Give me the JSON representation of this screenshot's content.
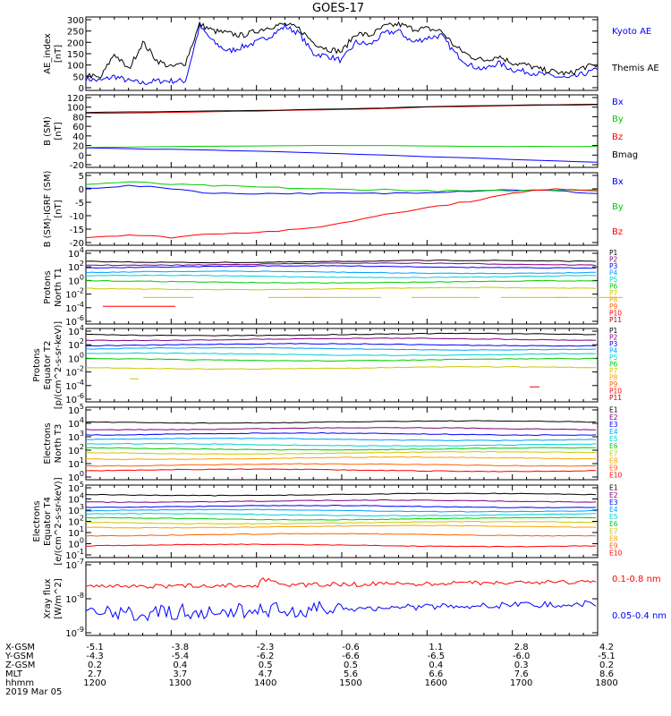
{
  "title": "GOES-17",
  "chart_data": [
    {
      "type": "line",
      "ylabel": "AE_index [nT]",
      "yticks": [
        "300",
        "250",
        "200",
        "150",
        "100",
        "50",
        "0"
      ],
      "ylim": [
        0,
        300
      ],
      "x": [
        1200,
        1210,
        1220,
        1230,
        1240,
        1250,
        1300,
        1310,
        1320,
        1330,
        1340,
        1350,
        1400,
        1410,
        1420,
        1430,
        1440,
        1450,
        1500,
        1510,
        1520,
        1530,
        1540,
        1550,
        1600,
        1610,
        1620,
        1630,
        1640,
        1650,
        1700,
        1710,
        1720,
        1730,
        1740,
        1750,
        1800
      ],
      "series": [
        {
          "name": "Kyoto AE",
          "color": "#0000ff",
          "values": [
            40,
            30,
            50,
            30,
            20,
            30,
            30,
            30,
            270,
            200,
            160,
            180,
            200,
            230,
            270,
            240,
            150,
            140,
            120,
            200,
            190,
            240,
            250,
            200,
            220,
            230,
            150,
            100,
            80,
            110,
            80,
            70,
            60,
            50,
            40,
            60,
            80
          ]
        },
        {
          "name": "Themis AE",
          "color": "#000000",
          "values": [
            60,
            40,
            150,
            80,
            200,
            120,
            90,
            110,
            280,
            250,
            240,
            230,
            250,
            270,
            280,
            260,
            200,
            170,
            160,
            240,
            230,
            270,
            280,
            260,
            260,
            250,
            180,
            140,
            120,
            140,
            110,
            100,
            80,
            70,
            60,
            90,
            100
          ]
        }
      ]
    },
    {
      "type": "line",
      "ylabel": "B (SM) [nT]",
      "yticks": [
        "120",
        "100",
        "80",
        "60",
        "40",
        "20",
        "0",
        "-20"
      ],
      "ylim": [
        -20,
        120
      ],
      "x": [
        1200,
        1300,
        1400,
        1500,
        1600,
        1700,
        1800
      ],
      "series": [
        {
          "name": "Bx",
          "color": "#0000ff",
          "values": [
            15,
            12,
            8,
            3,
            -3,
            -9,
            -15
          ]
        },
        {
          "name": "By",
          "color": "#00cc00",
          "values": [
            16,
            18,
            19,
            20,
            19,
            18,
            18
          ]
        },
        {
          "name": "Bz",
          "color": "#ff0000",
          "values": [
            87,
            89,
            92,
            95,
            100,
            103,
            105
          ]
        },
        {
          "name": "Bmag",
          "color": "#000000",
          "values": [
            89,
            91,
            93,
            96,
            101,
            104,
            106
          ]
        }
      ]
    },
    {
      "type": "line",
      "ylabel": "B (SM)-IGRF (SM) [nT]",
      "yticks": [
        "5",
        "0",
        "-5",
        "-10",
        "-15",
        "-20"
      ],
      "ylim": [
        -20,
        6
      ],
      "x": [
        1200,
        1230,
        1300,
        1330,
        1400,
        1430,
        1500,
        1530,
        1600,
        1630,
        1700,
        1730,
        1800
      ],
      "series": [
        {
          "name": "Bx",
          "color": "#0000ff",
          "values": [
            1,
            2,
            1,
            -1,
            -1,
            -1,
            -1,
            -1,
            -0.5,
            0,
            0.5,
            0,
            -1
          ]
        },
        {
          "name": "By",
          "color": "#00cc00",
          "values": [
            2.5,
            3.5,
            2.5,
            2,
            1.5,
            1,
            0.5,
            0.5,
            0,
            0,
            0,
            0.5,
            0.5
          ]
        },
        {
          "name": "Bz",
          "color": "#ff0000",
          "values": [
            -18,
            -17,
            -18,
            -16.5,
            -16,
            -15,
            -12.5,
            -9,
            -6.5,
            -4,
            -1,
            1,
            0
          ]
        }
      ]
    },
    {
      "type": "line",
      "ylabel": "Protons North T1",
      "yscale": "log",
      "yticks": [
        "10^4",
        "10^2",
        "10^0",
        "10^-2",
        "10^-4",
        "10^-6"
      ],
      "legend": [
        "P1",
        "P2",
        "P3",
        "P4",
        "P5",
        "P6",
        "P7",
        "P8",
        "P9",
        "P10",
        "P11"
      ]
    },
    {
      "type": "line",
      "ylabel": "Protons Equator T2 [p/(cm^2-s-sr-keV)]",
      "yscale": "log",
      "yticks": [
        "10^4",
        "10^2",
        "10^0",
        "10^-2",
        "10^-4",
        "10^-6"
      ],
      "legend": [
        "P1",
        "P2",
        "P3",
        "P4",
        "P5",
        "P6",
        "P7",
        "P8",
        "P9",
        "P10",
        "P11"
      ]
    },
    {
      "type": "line",
      "ylabel": "Electrons North T3",
      "yscale": "log",
      "yticks": [
        "10^5",
        "10^4",
        "10^3",
        "10^2",
        "10^1",
        "10^0"
      ],
      "legend": [
        "E1",
        "E2",
        "E3",
        "E4",
        "E5",
        "E6",
        "E7",
        "E8",
        "E9",
        "E10"
      ]
    },
    {
      "type": "line",
      "ylabel": "Electrons Equator T4 [e/(cm^2-s-sr-keV)]",
      "yscale": "log",
      "yticks": [
        "10^5",
        "10^4",
        "10^3",
        "10^2",
        "10^1",
        "10^0",
        "10^-1"
      ],
      "legend": [
        "E1",
        "E2",
        "E3",
        "E4",
        "E5",
        "E6",
        "E7",
        "E8",
        "E9",
        "E10"
      ]
    },
    {
      "type": "line",
      "ylabel": "Xray flux [W/m^2]",
      "yscale": "log",
      "yticks": [
        "10^-7",
        "10^-8",
        "10^-9"
      ],
      "series": [
        {
          "name": "0.1-0.8 nm",
          "color": "#ff0000"
        },
        {
          "name": "0.05-0.4 nm",
          "color": "#0000ff"
        }
      ]
    }
  ],
  "footer": {
    "rows": [
      {
        "label": "X-GSM",
        "values": [
          "-5.1",
          "-3.8",
          "-2.3",
          "-0.6",
          "1.1",
          "2.8",
          "4.2"
        ]
      },
      {
        "label": "Y-GSM",
        "values": [
          "-4.3",
          "-5.4",
          "-6.2",
          "-6.6",
          "-6.5",
          "-6.0",
          "-5.1"
        ]
      },
      {
        "label": "Z-GSM",
        "values": [
          "0.2",
          "0.4",
          "0.5",
          "0.5",
          "0.4",
          "0.3",
          "0.2"
        ]
      },
      {
        "label": "MLT",
        "values": [
          "2.7",
          "3.7",
          "4.7",
          "5.6",
          "6.6",
          "7.6",
          "8.6"
        ]
      },
      {
        "label": "hhmm",
        "values": [
          "1200",
          "1300",
          "1400",
          "1500",
          "1600",
          "1700",
          "1800"
        ]
      }
    ],
    "date": "2019 Mar 05"
  },
  "colors": {
    "P": [
      "#000000",
      "#800080",
      "#0000ff",
      "#00a0ff",
      "#00d0d0",
      "#00cc00",
      "#c8c800",
      "#ffa000",
      "#ff6000",
      "#ff0000",
      "#c00000"
    ],
    "E": [
      "#000000",
      "#800080",
      "#0000ff",
      "#00a0ff",
      "#00d0d0",
      "#00cc00",
      "#c8c800",
      "#ffa000",
      "#ff6000",
      "#ff0000"
    ]
  }
}
